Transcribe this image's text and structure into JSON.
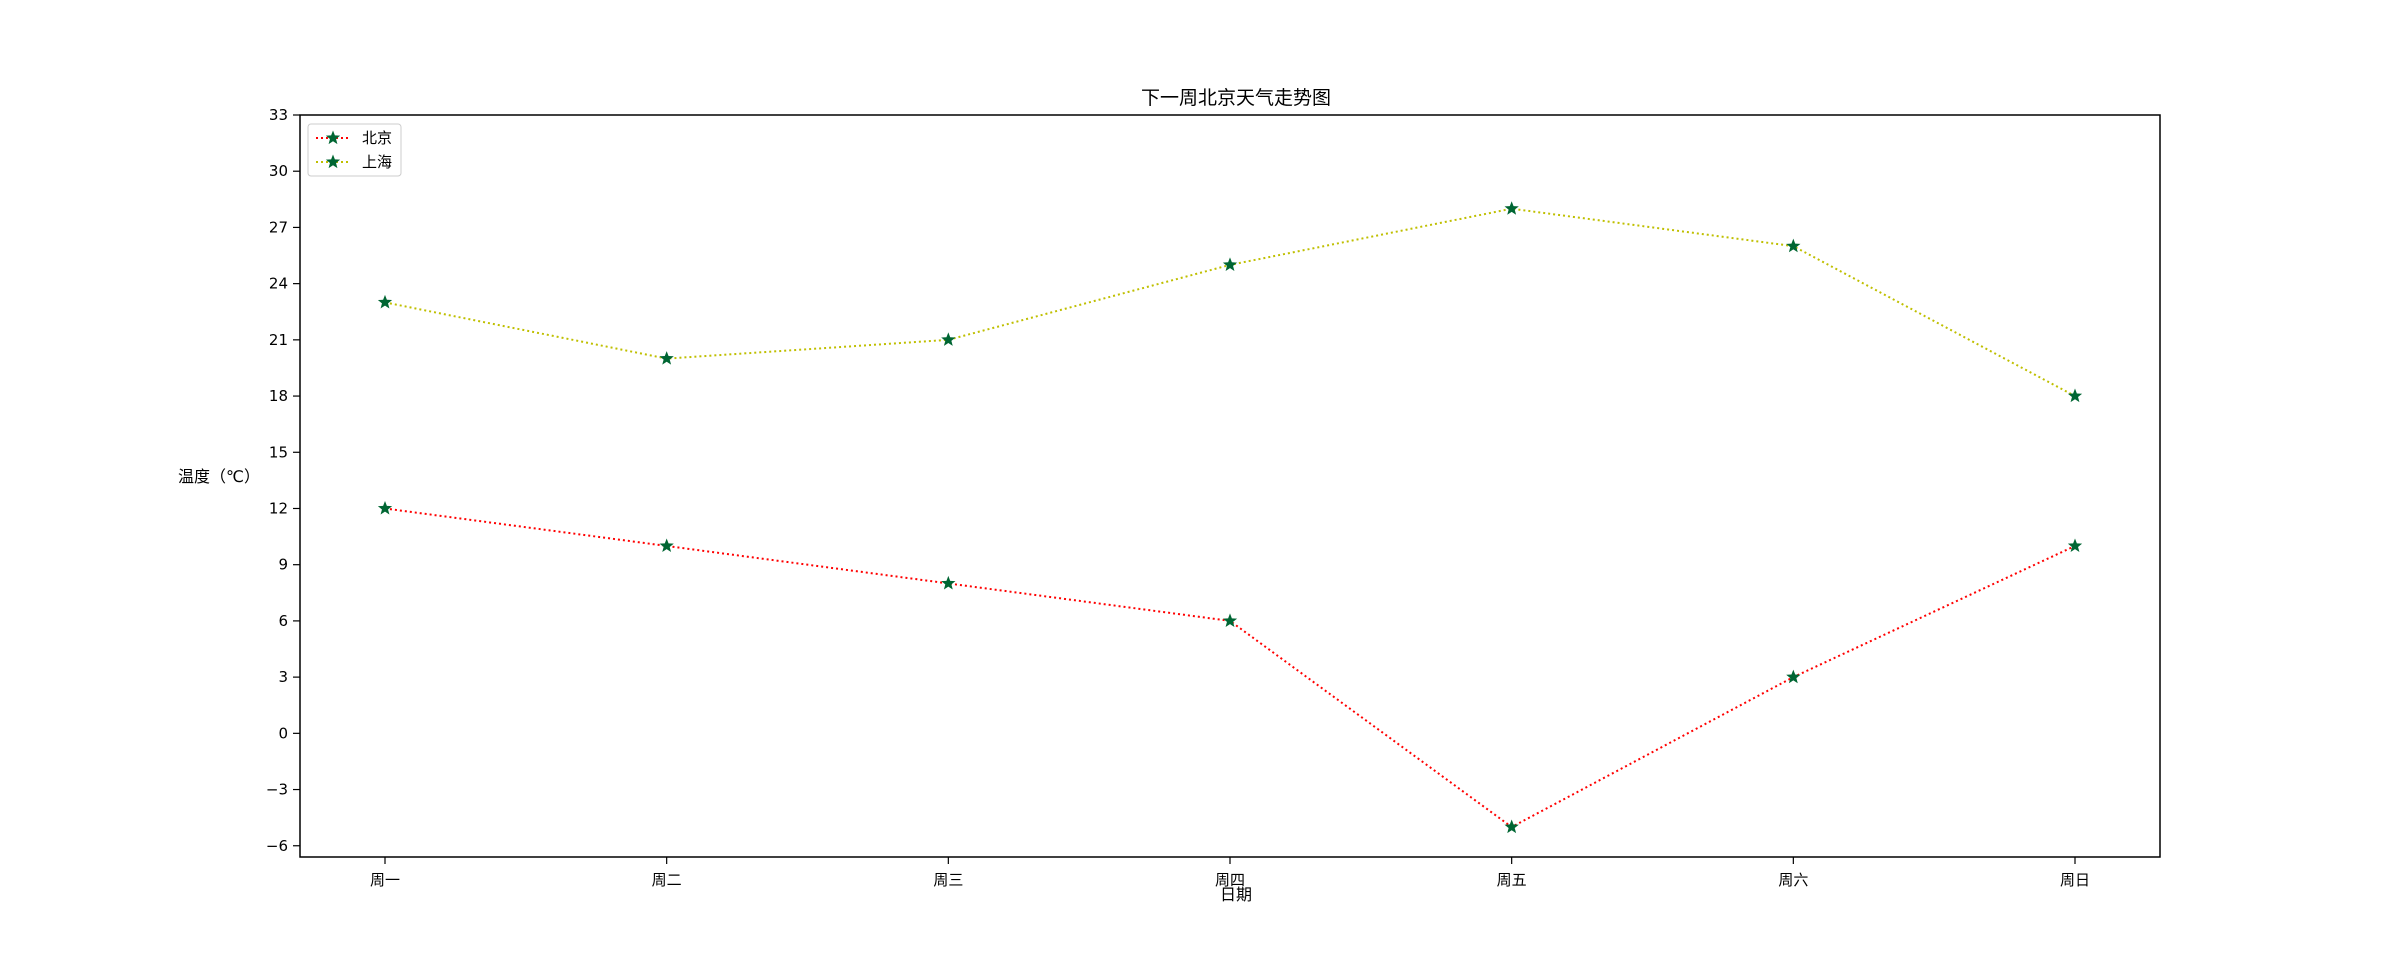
{
  "chart_data": {
    "type": "line",
    "title": "下一周北京天气走势图",
    "xlabel": "日期",
    "ylabel": "温度（℃）",
    "categories": [
      "周一",
      "周二",
      "周三",
      "周四",
      "周五",
      "周六",
      "周日"
    ],
    "ylim": [
      -6.6,
      33
    ],
    "yticks": [
      -6,
      -3,
      0,
      3,
      6,
      9,
      12,
      15,
      18,
      21,
      24,
      27,
      30,
      33
    ],
    "grid": false,
    "legend_position": "upper-left",
    "marker": "star",
    "marker_color": "#006633",
    "series": [
      {
        "name": "北京",
        "values": [
          12,
          10,
          8,
          6,
          -5,
          3,
          10
        ],
        "color": "#ff0000",
        "linestyle": "dotted"
      },
      {
        "name": "上海",
        "values": [
          23,
          20,
          21,
          25,
          28,
          26,
          18
        ],
        "color": "#bfbf00",
        "linestyle": "dotted"
      }
    ]
  }
}
